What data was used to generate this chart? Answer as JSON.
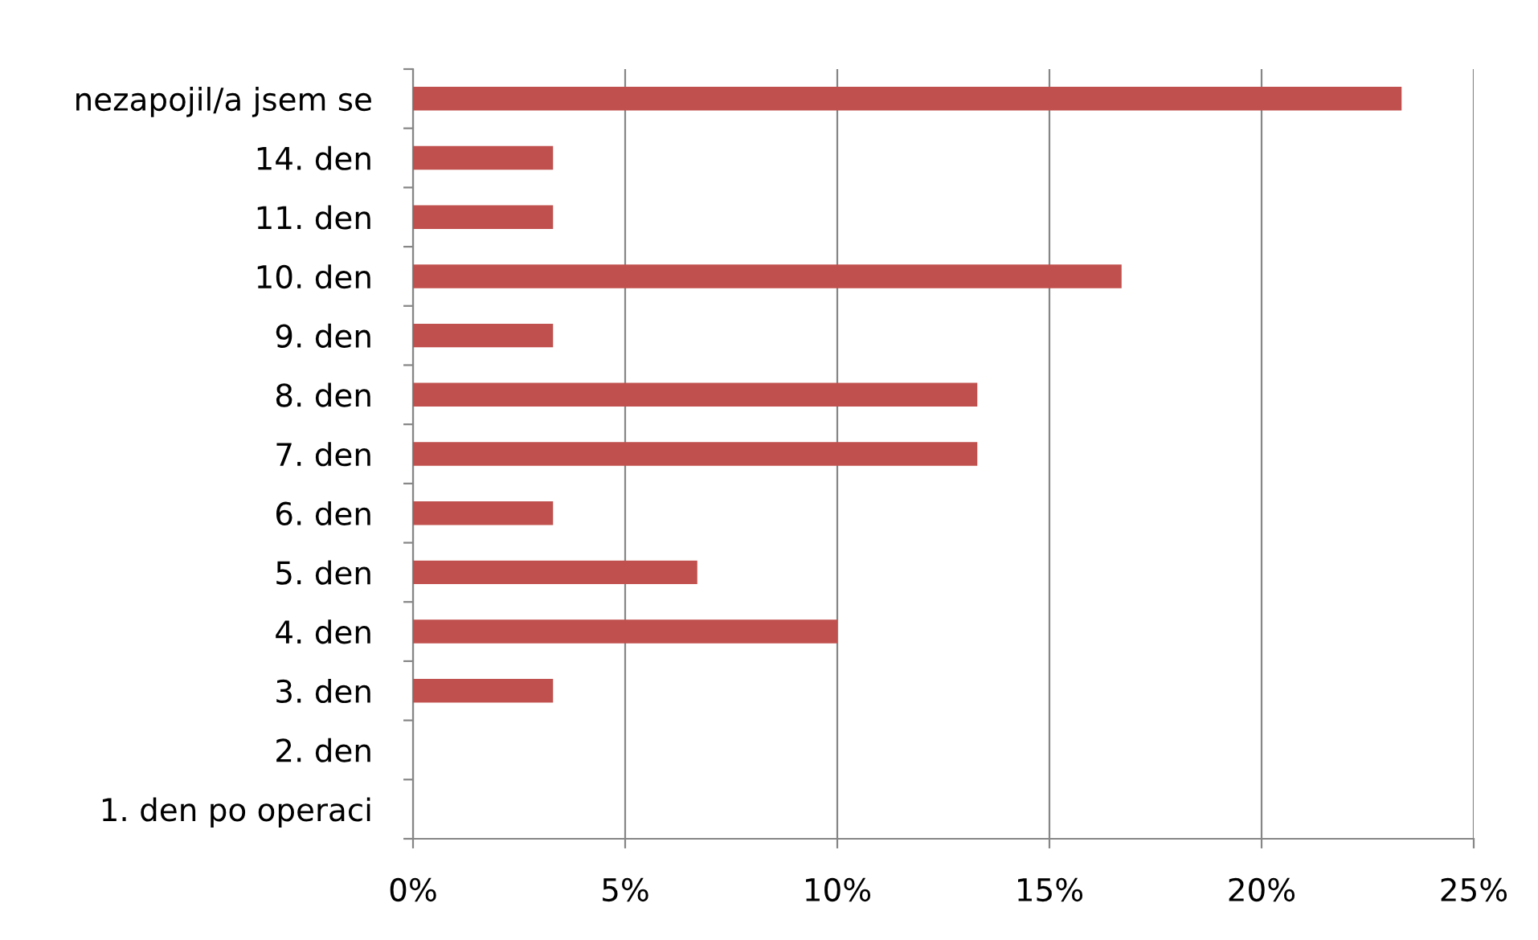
{
  "chart_data": {
    "type": "bar",
    "orientation": "horizontal",
    "categories": [
      "nezapojil/a jsem se",
      "14. den",
      "11. den",
      "10. den",
      "9. den",
      "8. den",
      "7. den",
      "6. den",
      "5. den",
      "4. den",
      "3. den",
      "2. den",
      "1. den po operaci"
    ],
    "values": [
      23.3,
      3.3,
      3.3,
      16.7,
      3.3,
      13.3,
      13.3,
      3.3,
      6.7,
      10,
      3.3,
      0,
      0
    ],
    "color": "#c0504d",
    "xlim": [
      0,
      25
    ],
    "xticks": [
      {
        "value": 0,
        "label": "0%"
      },
      {
        "value": 5,
        "label": "5%"
      },
      {
        "value": 10,
        "label": "10%"
      },
      {
        "value": 15,
        "label": "15%"
      },
      {
        "value": 20,
        "label": "20%"
      },
      {
        "value": 25,
        "label": "25%"
      }
    ],
    "grid": "x"
  }
}
